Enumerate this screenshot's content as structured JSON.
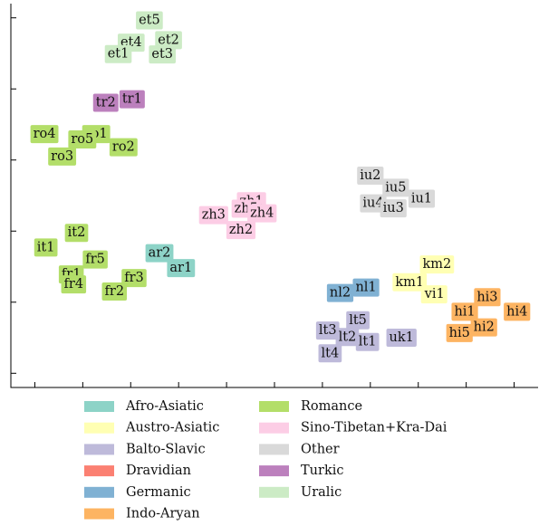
{
  "chart_data": {
    "type": "scatter",
    "title": "",
    "xlabel": "",
    "ylabel": "",
    "xlim": [
      -0.05,
      1.05
    ],
    "ylim": [
      -0.04,
      1.04
    ],
    "grid": false,
    "legend_position": "bottom",
    "families": [
      {
        "name": "Afro-Asiatic",
        "color": "#8dd3c7"
      },
      {
        "name": "Austro-Asiatic",
        "color": "#ffffb3"
      },
      {
        "name": "Balto-Slavic",
        "color": "#bebada"
      },
      {
        "name": "Dravidian",
        "color": "#fb8072"
      },
      {
        "name": "Germanic",
        "color": "#80b1d3"
      },
      {
        "name": "Indo-Aryan",
        "color": "#fdb462"
      },
      {
        "name": "Romance",
        "color": "#b3de69"
      },
      {
        "name": "Sino-Tibetan+Kra-Dai",
        "color": "#fccde5"
      },
      {
        "name": "Other",
        "color": "#d9d9d9"
      },
      {
        "name": "Turkic",
        "color": "#bc80bd"
      },
      {
        "name": "Uralic",
        "color": "#ccebc5"
      }
    ],
    "points": [
      {
        "label": "et5",
        "family": "Uralic",
        "x": 0.239,
        "y": 0.993
      },
      {
        "label": "et4",
        "family": "Uralic",
        "x": 0.201,
        "y": 0.93
      },
      {
        "label": "et2",
        "family": "Uralic",
        "x": 0.279,
        "y": 0.937
      },
      {
        "label": "et1",
        "family": "Uralic",
        "x": 0.174,
        "y": 0.898
      },
      {
        "label": "et3",
        "family": "Uralic",
        "x": 0.266,
        "y": 0.897
      },
      {
        "label": "tr2",
        "family": "Turkic",
        "x": 0.148,
        "y": 0.761
      },
      {
        "label": "tr1",
        "family": "Turkic",
        "x": 0.203,
        "y": 0.771
      },
      {
        "label": "ro4",
        "family": "Romance",
        "x": 0.02,
        "y": 0.673
      },
      {
        "label": "ro1",
        "family": "Romance",
        "x": 0.128,
        "y": 0.673
      },
      {
        "label": "ro5",
        "family": "Romance",
        "x": 0.099,
        "y": 0.658
      },
      {
        "label": "ro2",
        "family": "Romance",
        "x": 0.185,
        "y": 0.636
      },
      {
        "label": "ro3",
        "family": "Romance",
        "x": 0.057,
        "y": 0.61
      },
      {
        "label": "zh1",
        "family": "Sino-Tibetan+Kra-Dai",
        "x": 0.452,
        "y": 0.484
      },
      {
        "label": "zh5",
        "family": "Sino-Tibetan+Kra-Dai",
        "x": 0.441,
        "y": 0.463
      },
      {
        "label": "zh3",
        "family": "Sino-Tibetan+Kra-Dai",
        "x": 0.373,
        "y": 0.445
      },
      {
        "label": "zh4",
        "family": "Sino-Tibetan+Kra-Dai",
        "x": 0.474,
        "y": 0.45
      },
      {
        "label": "zh2",
        "family": "Sino-Tibetan+Kra-Dai",
        "x": 0.43,
        "y": 0.403
      },
      {
        "label": "it2",
        "family": "Romance",
        "x": 0.087,
        "y": 0.395
      },
      {
        "label": "it1",
        "family": "Romance",
        "x": 0.023,
        "y": 0.354
      },
      {
        "label": "fr5",
        "family": "Romance",
        "x": 0.126,
        "y": 0.32
      },
      {
        "label": "fr1",
        "family": "Romance",
        "x": 0.076,
        "y": 0.278
      },
      {
        "label": "fr4",
        "family": "Romance",
        "x": 0.081,
        "y": 0.25
      },
      {
        "label": "fr3",
        "family": "Romance",
        "x": 0.207,
        "y": 0.268
      },
      {
        "label": "fr2",
        "family": "Romance",
        "x": 0.166,
        "y": 0.23
      },
      {
        "label": "ar2",
        "family": "Afro-Asiatic",
        "x": 0.26,
        "y": 0.338
      },
      {
        "label": "ar1",
        "family": "Afro-Asiatic",
        "x": 0.305,
        "y": 0.296
      },
      {
        "label": "iu2",
        "family": "Other",
        "x": 0.7,
        "y": 0.556
      },
      {
        "label": "iu5",
        "family": "Other",
        "x": 0.753,
        "y": 0.522
      },
      {
        "label": "iu1",
        "family": "Other",
        "x": 0.807,
        "y": 0.491
      },
      {
        "label": "iu4",
        "family": "Other",
        "x": 0.706,
        "y": 0.478
      },
      {
        "label": "iu3",
        "family": "Other",
        "x": 0.748,
        "y": 0.464
      },
      {
        "label": "km2",
        "family": "Austro-Asiatic",
        "x": 0.839,
        "y": 0.306
      },
      {
        "label": "km1",
        "family": "Austro-Asiatic",
        "x": 0.782,
        "y": 0.256
      },
      {
        "label": "vi1",
        "family": "Austro-Asiatic",
        "x": 0.834,
        "y": 0.222
      },
      {
        "label": "nl2",
        "family": "Germanic",
        "x": 0.637,
        "y": 0.226
      },
      {
        "label": "nl1",
        "family": "Germanic",
        "x": 0.691,
        "y": 0.241
      },
      {
        "label": "hi3",
        "family": "Indo-Aryan",
        "x": 0.944,
        "y": 0.214
      },
      {
        "label": "hi1",
        "family": "Indo-Aryan",
        "x": 0.897,
        "y": 0.173
      },
      {
        "label": "hi4",
        "family": "Indo-Aryan",
        "x": 1.006,
        "y": 0.173
      },
      {
        "label": "hi2",
        "family": "Indo-Aryan",
        "x": 0.937,
        "y": 0.129
      },
      {
        "label": "hi5",
        "family": "Indo-Aryan",
        "x": 0.886,
        "y": 0.113
      },
      {
        "label": "lt5",
        "family": "Balto-Slavic",
        "x": 0.674,
        "y": 0.149
      },
      {
        "label": "lt3",
        "family": "Balto-Slavic",
        "x": 0.611,
        "y": 0.12
      },
      {
        "label": "lt2",
        "family": "Balto-Slavic",
        "x": 0.652,
        "y": 0.102
      },
      {
        "label": "lt1",
        "family": "Balto-Slavic",
        "x": 0.694,
        "y": 0.088
      },
      {
        "label": "lt4",
        "family": "Balto-Slavic",
        "x": 0.616,
        "y": 0.056
      },
      {
        "label": "uk1",
        "family": "Balto-Slavic",
        "x": 0.765,
        "y": 0.1
      }
    ]
  }
}
